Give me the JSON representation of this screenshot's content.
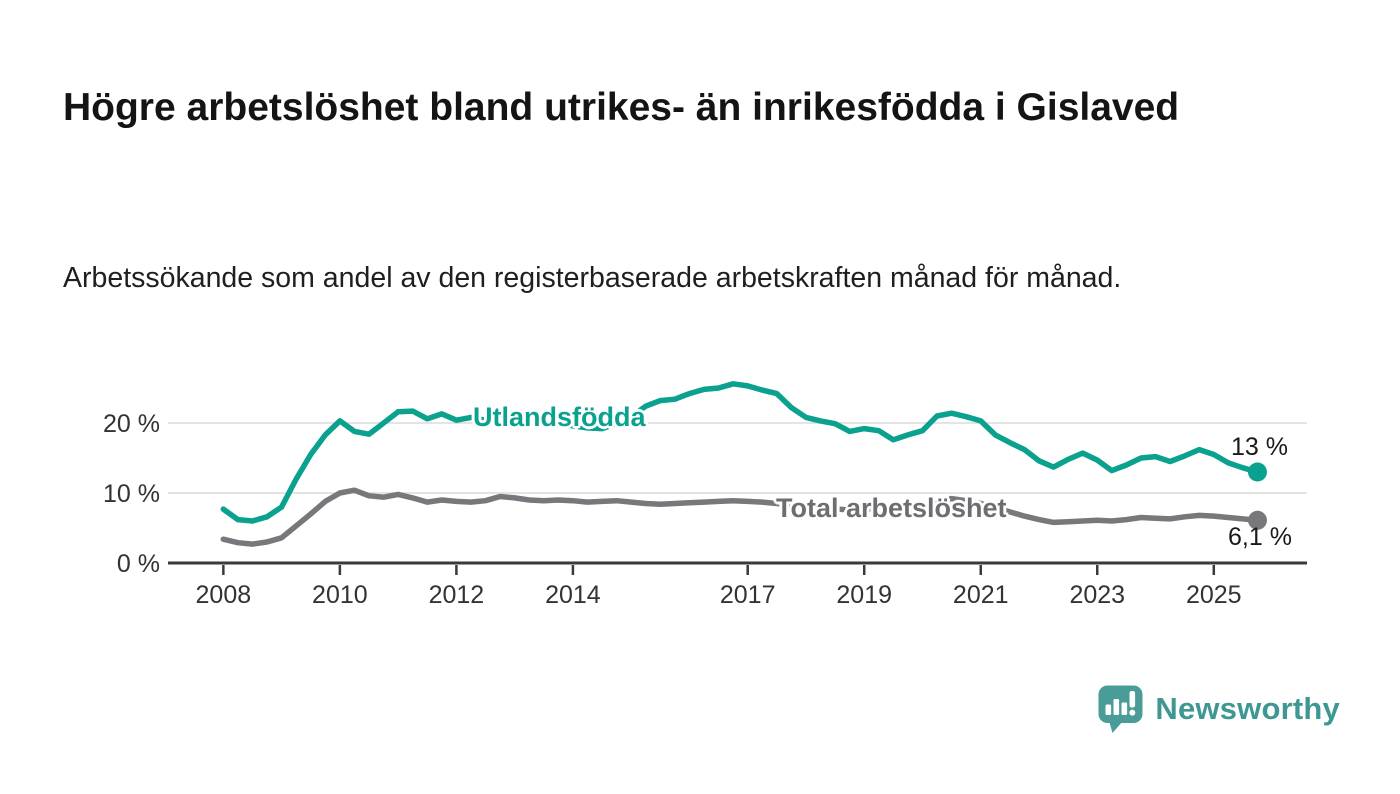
{
  "title": "Högre arbetslöshet bland utrikes- än inrikesfödda i Gislaved",
  "subtitle": "Arbetssökande som andel av den registerbaserade arbetskraften månad för månad.",
  "branding": {
    "name": "Newsworthy",
    "icon": "newsworthy-chart-bubble-icon",
    "icon_color": "#4a9c98",
    "text_color": "#3e9793"
  },
  "colors": {
    "background": "#ffffff",
    "title_text": "#141414",
    "axis": "#3a3a3a",
    "gridline": "#dcdcdc",
    "tick_text": "#333333",
    "end_label_text": "#1a1a1a"
  },
  "chart_data": {
    "type": "line",
    "title": "Högre arbetslöshet bland utrikes- än inrikesfödda i Gislaved",
    "xlabel": "",
    "ylabel": "",
    "grid": "horizontal",
    "legend_position": "inline-labels",
    "xlim": [
      2007.05,
      2026.6
    ],
    "ylim": [
      0,
      28
    ],
    "x_ticks": [
      {
        "v": 2008,
        "label": "2008"
      },
      {
        "v": 2010,
        "label": "2010"
      },
      {
        "v": 2012,
        "label": "2012"
      },
      {
        "v": 2014,
        "label": "2014"
      },
      {
        "v": 2017,
        "label": "2017"
      },
      {
        "v": 2019,
        "label": "2019"
      },
      {
        "v": 2021,
        "label": "2021"
      },
      {
        "v": 2023,
        "label": "2023"
      },
      {
        "v": 2025,
        "label": "2025"
      }
    ],
    "y_ticks": [
      {
        "v": 0,
        "label": "0 %"
      },
      {
        "v": 10,
        "label": "10 %"
      },
      {
        "v": 20,
        "label": "20 %"
      }
    ],
    "x": [
      2008,
      2008.25,
      2008.5,
      2008.75,
      2009,
      2009.25,
      2009.5,
      2009.75,
      2010,
      2010.25,
      2010.5,
      2010.75,
      2011,
      2011.25,
      2011.5,
      2011.75,
      2012,
      2012.25,
      2012.5,
      2012.75,
      2013,
      2013.25,
      2013.5,
      2013.75,
      2014,
      2014.25,
      2014.5,
      2014.75,
      2015,
      2015.25,
      2015.5,
      2015.75,
      2016,
      2016.25,
      2016.5,
      2016.75,
      2017,
      2017.25,
      2017.5,
      2017.75,
      2018,
      2018.25,
      2018.5,
      2018.75,
      2019,
      2019.25,
      2019.5,
      2019.75,
      2020,
      2020.25,
      2020.5,
      2020.75,
      2021,
      2021.25,
      2021.5,
      2021.75,
      2022,
      2022.25,
      2022.5,
      2022.75,
      2023,
      2023.25,
      2023.5,
      2023.75,
      2024,
      2024.25,
      2024.5,
      2024.75,
      2025,
      2025.25,
      2025.5,
      2025.75
    ],
    "series": [
      {
        "name": "Utlandsfödda",
        "color": "#0aa18e",
        "end_label": "13 %",
        "values": [
          7.7,
          6.2,
          6.0,
          6.6,
          8.0,
          12.0,
          15.5,
          18.3,
          20.3,
          18.8,
          18.4,
          20.0,
          21.6,
          21.7,
          20.6,
          21.3,
          20.4,
          20.8,
          20.4,
          20.9,
          21.0,
          20.6,
          20.2,
          19.8,
          19.6,
          19.3,
          19.2,
          19.9,
          20.9,
          22.4,
          23.2,
          23.4,
          24.2,
          24.8,
          25.0,
          25.6,
          25.3,
          24.7,
          24.2,
          22.2,
          20.8,
          20.3,
          19.9,
          18.8,
          19.2,
          18.9,
          17.6,
          18.3,
          18.9,
          21.0,
          21.4,
          20.9,
          20.3,
          18.3,
          17.2,
          16.2,
          14.6,
          13.7,
          14.8,
          15.7,
          14.7,
          13.2,
          14.0,
          15.0,
          15.2,
          14.5,
          15.3,
          16.2,
          15.5,
          14.3,
          13.6,
          13.0
        ]
      },
      {
        "name": "Total arbetslöshet",
        "color": "#78787c",
        "end_label": "6,1 %",
        "values": [
          3.4,
          2.9,
          2.7,
          3.0,
          3.6,
          5.3,
          7.0,
          8.8,
          10.0,
          10.4,
          9.6,
          9.4,
          9.8,
          9.3,
          8.7,
          9.0,
          8.8,
          8.7,
          8.9,
          9.5,
          9.3,
          9.0,
          8.9,
          9.0,
          8.9,
          8.7,
          8.8,
          8.9,
          8.7,
          8.5,
          8.4,
          8.5,
          8.6,
          8.7,
          8.8,
          8.9,
          8.8,
          8.7,
          8.5,
          8.3,
          8.0,
          7.8,
          7.7,
          7.6,
          7.7,
          7.6,
          7.5,
          7.7,
          8.0,
          8.8,
          9.2,
          8.9,
          8.5,
          7.9,
          7.3,
          6.7,
          6.2,
          5.8,
          5.9,
          6.0,
          6.1,
          6.0,
          6.2,
          6.5,
          6.4,
          6.3,
          6.6,
          6.8,
          6.7,
          6.5,
          6.3,
          6.1
        ]
      }
    ]
  }
}
